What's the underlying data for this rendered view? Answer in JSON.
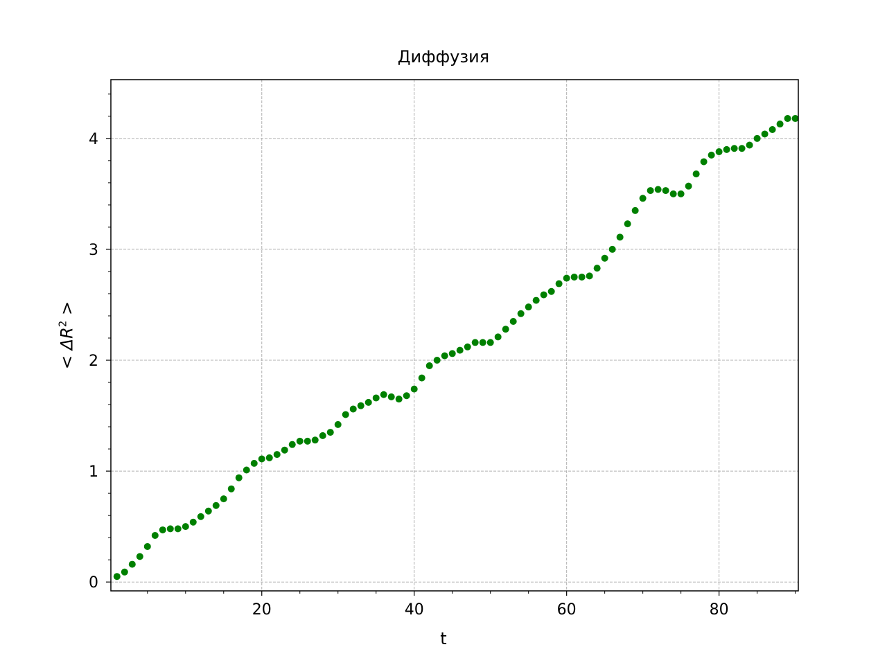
{
  "chart_data": {
    "type": "scatter",
    "title": "Диффузия",
    "xlabel": "t",
    "ylabel_parts": {
      "open": "<",
      "delta": "Δ",
      "var": "R",
      "power": "2",
      "close": ">"
    },
    "xlim": [
      0.2,
      90.4
    ],
    "ylim": [
      -0.08,
      4.53
    ],
    "xticks": [
      20,
      40,
      60,
      80
    ],
    "xtick_labels": [
      "20",
      "40",
      "60",
      "80"
    ],
    "yticks": [
      0,
      1,
      2,
      3,
      4
    ],
    "ytick_labels": [
      "0",
      "1",
      "2",
      "3",
      "4"
    ],
    "grid": true,
    "marker_color": "#008000",
    "x": [
      1,
      2,
      3,
      4,
      5,
      6,
      7,
      8,
      9,
      10,
      11,
      12,
      13,
      14,
      15,
      16,
      17,
      18,
      19,
      20,
      21,
      22,
      23,
      24,
      25,
      26,
      27,
      28,
      29,
      30,
      31,
      32,
      33,
      34,
      35,
      36,
      37,
      38,
      39,
      40,
      41,
      42,
      43,
      44,
      45,
      46,
      47,
      48,
      49,
      50,
      51,
      52,
      53,
      54,
      55,
      56,
      57,
      58,
      59,
      60,
      61,
      62,
      63,
      64,
      65,
      66,
      67,
      68,
      69,
      70,
      71,
      72,
      73,
      74,
      75,
      76,
      77,
      78,
      79,
      80,
      81,
      82,
      83,
      84,
      85,
      86,
      87,
      88,
      89,
      90
    ],
    "y": [
      0.05,
      0.09,
      0.16,
      0.23,
      0.32,
      0.42,
      0.47,
      0.48,
      0.48,
      0.5,
      0.54,
      0.59,
      0.64,
      0.69,
      0.75,
      0.84,
      0.94,
      1.01,
      1.07,
      1.11,
      1.12,
      1.15,
      1.19,
      1.24,
      1.27,
      1.27,
      1.28,
      1.32,
      1.35,
      1.42,
      1.51,
      1.56,
      1.59,
      1.62,
      1.66,
      1.69,
      1.67,
      1.65,
      1.68,
      1.74,
      1.84,
      1.95,
      2.0,
      2.04,
      2.06,
      2.09,
      2.12,
      2.16,
      2.16,
      2.16,
      2.21,
      2.28,
      2.35,
      2.42,
      2.48,
      2.54,
      2.59,
      2.62,
      2.69,
      2.74,
      2.75,
      2.75,
      2.76,
      2.83,
      2.92,
      3.0,
      3.11,
      3.23,
      3.35,
      3.46,
      3.53,
      3.54,
      3.53,
      3.5,
      3.5,
      3.57,
      3.68,
      3.79,
      3.85,
      3.88,
      3.9,
      3.91,
      3.91,
      3.94,
      4.0,
      4.04,
      4.08,
      4.13,
      4.18,
      4.18
    ]
  }
}
